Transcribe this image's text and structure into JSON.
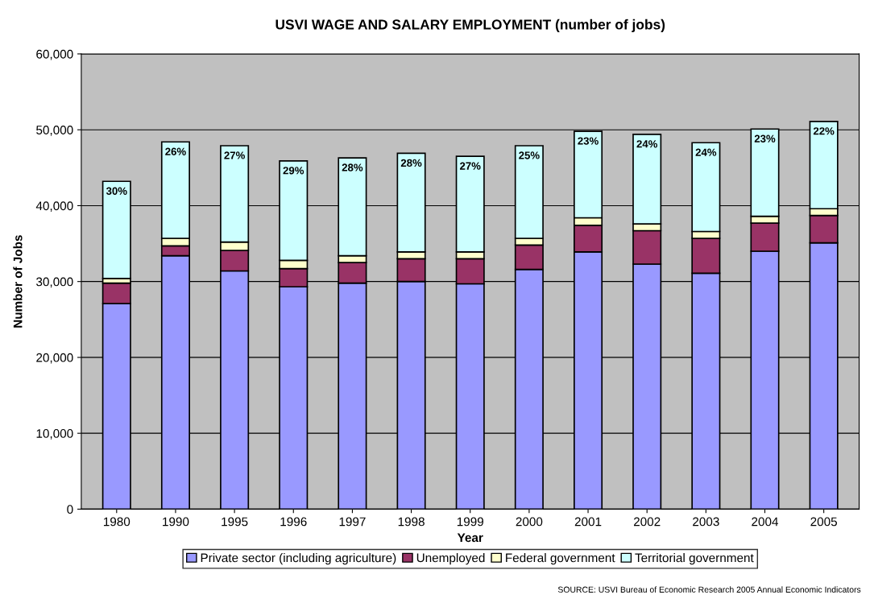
{
  "chart_data": {
    "type": "bar",
    "stacked": true,
    "title": "USVI WAGE AND SALARY EMPLOYMENT (number of jobs)",
    "xlabel": "Year",
    "ylabel": "Number of Jobs",
    "categories": [
      "1980",
      "1990",
      "1995",
      "1996",
      "1997",
      "1998",
      "1999",
      "2000",
      "2001",
      "2002",
      "2003",
      "2004",
      "2005"
    ],
    "series": [
      {
        "name": "Private sector (including agriculture)",
        "color": "#9999ff",
        "values": [
          27100,
          33400,
          31400,
          29300,
          29800,
          30000,
          29700,
          31600,
          33900,
          32300,
          31100,
          34000,
          35100
        ]
      },
      {
        "name": "Unemployed",
        "color": "#993366",
        "values": [
          2700,
          1300,
          2700,
          2400,
          2700,
          3000,
          3300,
          3200,
          3500,
          4400,
          4600,
          3700,
          3600
        ]
      },
      {
        "name": "Federal government",
        "color": "#ffffcc",
        "values": [
          600,
          1000,
          1100,
          1100,
          900,
          900,
          900,
          900,
          1000,
          900,
          900,
          900,
          900
        ]
      },
      {
        "name": "Territorial government",
        "color": "#ccffff",
        "values": [
          12800,
          12700,
          12700,
          13100,
          12900,
          13000,
          12600,
          12200,
          11400,
          11800,
          11700,
          11500,
          11500
        ]
      }
    ],
    "ylim": [
      0,
      60000
    ],
    "yticks": [
      {
        "value": 0,
        "label": "0"
      },
      {
        "value": 10000,
        "label": "10,000"
      },
      {
        "value": 20000,
        "label": "20,000"
      },
      {
        "value": 30000,
        "label": "30,000"
      },
      {
        "value": 40000,
        "label": "40,000"
      },
      {
        "value": 50000,
        "label": "50,000"
      },
      {
        "value": 60000,
        "label": "60,000"
      }
    ],
    "grid": "y",
    "legend": "bottom",
    "annotations": [
      {
        "text": "30%",
        "x": "1980",
        "y": 43200
      },
      {
        "text": "26%",
        "x": "1990",
        "y": 48400
      },
      {
        "text": "27%",
        "x": "1995",
        "y": 47900
      },
      {
        "text": "29%",
        "x": "1996",
        "y": 45900
      },
      {
        "text": "28%",
        "x": "1997",
        "y": 46300
      },
      {
        "text": "28%",
        "x": "1998",
        "y": 46900
      },
      {
        "text": "27%",
        "x": "1999",
        "y": 46500
      },
      {
        "text": "25%",
        "x": "2000",
        "y": 47900
      },
      {
        "text": "23%",
        "x": "2001",
        "y": 49800
      },
      {
        "text": "24%",
        "x": "2002",
        "y": 49400
      },
      {
        "text": "24%",
        "x": "2003",
        "y": 48300
      },
      {
        "text": "23%",
        "x": "2004",
        "y": 50100
      },
      {
        "text": "22%",
        "x": "2005",
        "y": 51100
      },
      "SOURCE: USVI Bureau of Economic Research 2005 Annual Economic Indicators"
    ]
  }
}
